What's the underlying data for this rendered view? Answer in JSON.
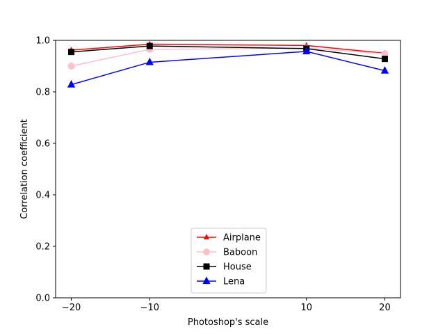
{
  "chart_data": {
    "type": "line",
    "title": "",
    "xlabel": "Photoshop's scale",
    "ylabel": "Correlation coefficient",
    "x": [
      -20,
      -10,
      10,
      20
    ],
    "xlim": [
      -22,
      22
    ],
    "ylim": [
      0.0,
      1.0
    ],
    "xticks": [
      -20,
      -10,
      10,
      20
    ],
    "xtick_labels": [
      "−20",
      "−10",
      "10",
      "20"
    ],
    "yticks": [
      0.0,
      0.2,
      0.4,
      0.6,
      0.8,
      1.0
    ],
    "ytick_labels": [
      "0.0",
      "0.2",
      "0.4",
      "0.6",
      "0.8",
      "1.0"
    ],
    "grid": false,
    "legend_position": "lower-center",
    "series": [
      {
        "name": "Airplane",
        "values": [
          0.962,
          0.985,
          0.98,
          0.95
        ],
        "color": "#ff0000",
        "marker": "triangle-small"
      },
      {
        "name": "Baboon",
        "values": [
          0.9,
          0.965,
          0.97,
          0.948
        ],
        "color": "#ffc0cb",
        "marker": "circle"
      },
      {
        "name": "House",
        "values": [
          0.955,
          0.978,
          0.968,
          0.928
        ],
        "color": "#000000",
        "marker": "square"
      },
      {
        "name": "Lena",
        "values": [
          0.828,
          0.915,
          0.957,
          0.882
        ],
        "color": "#0000ff",
        "marker": "triangle"
      }
    ]
  }
}
